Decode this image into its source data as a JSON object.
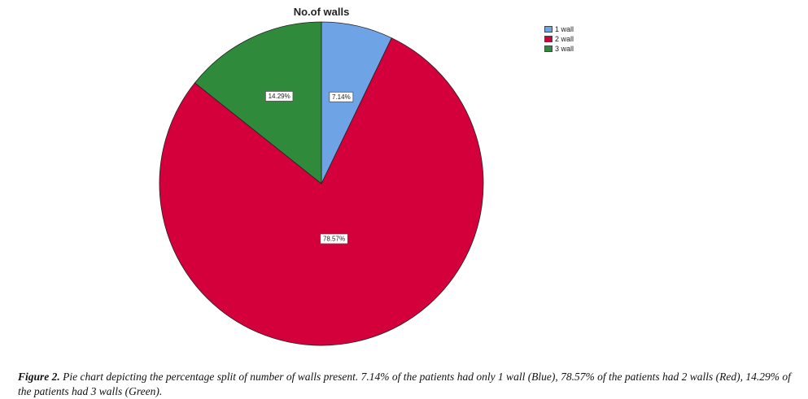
{
  "chart_data": {
    "type": "pie",
    "title": "No.of walls",
    "slices": [
      {
        "label": "1 wall",
        "value": 7.14,
        "display": "7.14%",
        "color": "#6ea3e6"
      },
      {
        "label": "2 wall",
        "value": 78.57,
        "display": "78.57%",
        "color": "#d4003c"
      },
      {
        "label": "3 wall",
        "value": 14.29,
        "display": "14.29%",
        "color": "#2f8a3c"
      }
    ],
    "start_angle_deg": 0,
    "direction": "clockwise",
    "legend_position": "top-right"
  },
  "caption": {
    "figure_ref": "Figure 2.",
    "text": " Pie chart depicting the percentage split of number of walls present. 7.14% of the patients had only 1 wall (Blue), 78.57% of the patients had 2 walls (Red), 14.29% of the patients had 3 walls (Green)."
  }
}
